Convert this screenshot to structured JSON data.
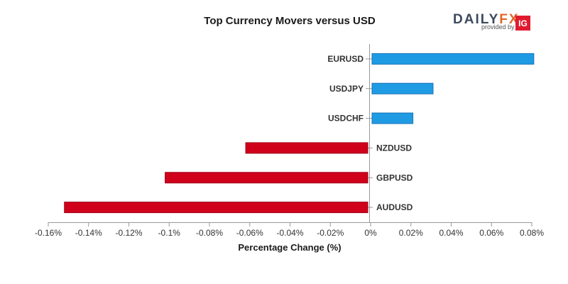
{
  "chart_data": {
    "type": "bar",
    "orientation": "horizontal",
    "title": "Top Currency Movers versus USD",
    "xlabel": "Percentage Change (%)",
    "ylabel": "",
    "xlim": [
      -0.16,
      0.08
    ],
    "xticks": [
      -0.16,
      -0.14,
      -0.12,
      -0.1,
      -0.08,
      -0.06,
      -0.04,
      -0.02,
      0,
      0.02,
      0.04,
      0.06,
      0.08
    ],
    "xtick_labels": [
      "-0.16%",
      "-0.14%",
      "-0.12%",
      "-0.1%",
      "-0.08%",
      "-0.06%",
      "-0.04%",
      "-0.02%",
      "0%",
      "0.02%",
      "0.04%",
      "0.06%",
      "0.08%"
    ],
    "categories": [
      "EURUSD",
      "USDJPY",
      "USDCHF",
      "NZDUSD",
      "GBPUSD",
      "AUDUSD"
    ],
    "values": [
      0.081,
      0.031,
      0.021,
      -0.062,
      -0.102,
      -0.152
    ],
    "positive_color": "#1f9be3",
    "negative_color": "#d0021b",
    "grid": false,
    "legend": "none"
  },
  "logo": {
    "daily": "DAILY",
    "fx": "FX",
    "provided_by": "provided by",
    "ig": "IG",
    "ig_color": "#e01b2f"
  }
}
